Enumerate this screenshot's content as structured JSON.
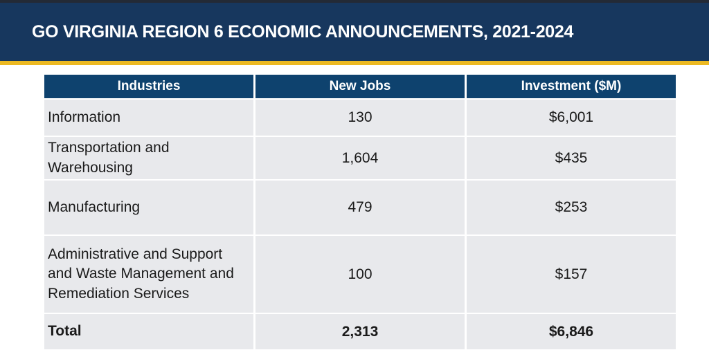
{
  "slide": {
    "title": "GO VIRGINIA REGION 6 ECONOMIC ANNOUNCEMENTS, 2021-2024"
  },
  "colors": {
    "banner_navy": "#17375E",
    "table_header_navy": "#0E426E",
    "gold_accent": "#ECB922",
    "row_gray": "#E8E9EC"
  },
  "table": {
    "headers": {
      "industries": "Industries",
      "new_jobs": "New Jobs",
      "investment": "Investment ($M)"
    },
    "rows": [
      {
        "industry": "Information",
        "new_jobs": "130",
        "investment": "$6,001"
      },
      {
        "industry": "Transportation and\nWarehousing",
        "new_jobs": "1,604",
        "investment": "$435"
      },
      {
        "industry": "Manufacturing",
        "new_jobs": "479",
        "investment": "$253"
      },
      {
        "industry": "Administrative and Support\nand Waste Management and\nRemediation Services",
        "new_jobs": "100",
        "investment": "$157"
      },
      {
        "industry": "Total",
        "new_jobs": "2,313",
        "investment": "$6,846"
      }
    ]
  }
}
